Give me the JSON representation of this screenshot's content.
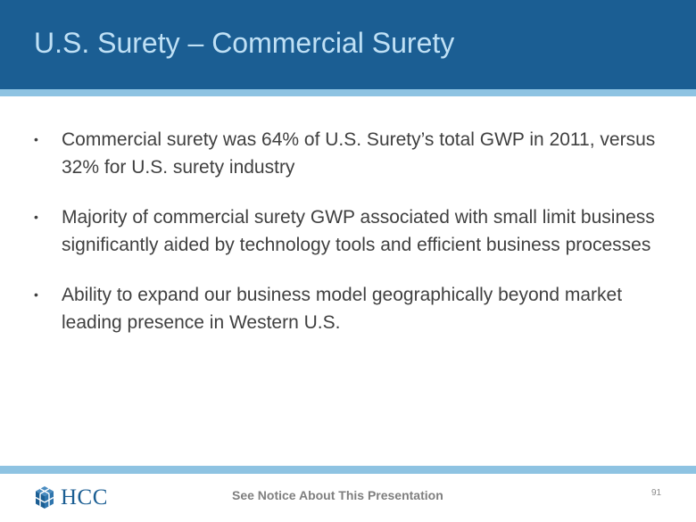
{
  "slide": {
    "title": "U.S. Surety – Commercial Surety",
    "bullets": [
      "Commercial surety was 64% of U.S. Surety’s total GWP in 2011, versus 32% for U.S. surety industry",
      "Majority of commercial surety GWP associated with small limit business significantly aided by technology tools and efficient business processes",
      "Ability to expand our business model geographically beyond market leading presence in Western U.S."
    ],
    "bullet_marker": "•"
  },
  "footer": {
    "logo_text": "HCC",
    "logo_icon": "hcc-cube-icon",
    "notice": "See Notice About This Presentation",
    "page_number": "91"
  },
  "colors": {
    "header_bg": "#1b5e93",
    "header_rule": "#8ec3e2",
    "title_text": "#bfe0f5",
    "body_text": "#404040",
    "brand_blue": "#1b5e93"
  }
}
